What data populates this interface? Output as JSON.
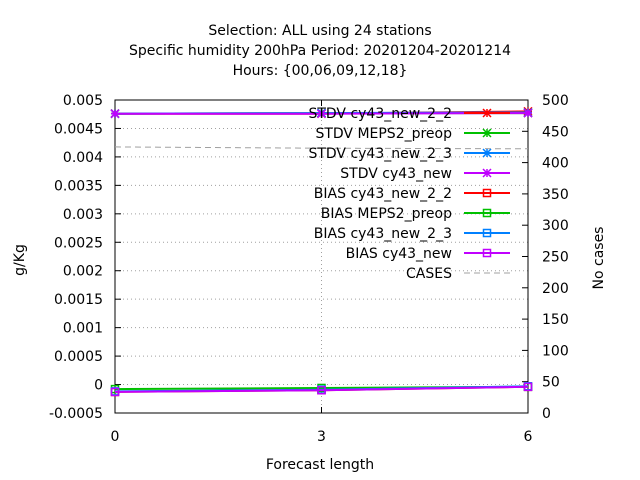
{
  "chart_data": {
    "type": "line",
    "title_lines": [
      "Selection: ALL using    24 stations",
      "Specific humidity 200hPa   Period: 20201204-20201214",
      "Hours: {00,06,09,12,18}"
    ],
    "xlabel": "Forecast length",
    "ylabel": "g/Kg",
    "y2label": "No cases",
    "xlim": [
      0,
      6
    ],
    "ylim": [
      -0.0005,
      0.005
    ],
    "y2lim": [
      0,
      500
    ],
    "x_ticks": [
      "0",
      "3",
      "6"
    ],
    "y_ticks": [
      "-0.0005",
      "0",
      "0.0005",
      "0.001",
      "0.0015",
      "0.002",
      "0.0025",
      "0.003",
      "0.0035",
      "0.004",
      "0.0045",
      "0.005"
    ],
    "y2_ticks": [
      "0",
      "50",
      "100",
      "150",
      "200",
      "250",
      "300",
      "350",
      "400",
      "450",
      "500"
    ],
    "grid": true,
    "legend_position": "top-right",
    "x": [
      0,
      3,
      6
    ],
    "series": [
      {
        "name": "STDV cy43_new_2_2",
        "axis": "y",
        "color": "#ff0000",
        "marker": "x",
        "values": [
          0.00476,
          0.00476,
          0.0048
        ]
      },
      {
        "name": "STDV MEPS2_preop",
        "axis": "y",
        "color": "#00c000",
        "marker": "x",
        "values": [
          0.00476,
          0.00477,
          0.00477
        ]
      },
      {
        "name": "STDV cy43_new_2_3",
        "axis": "y",
        "color": "#0080ff",
        "marker": "x",
        "values": [
          0.00476,
          0.00477,
          0.00478
        ]
      },
      {
        "name": "STDV cy43_new",
        "axis": "y",
        "color": "#c000ff",
        "marker": "x",
        "values": [
          0.00476,
          0.00476,
          0.00477
        ]
      },
      {
        "name": "BIAS cy43_new_2_2",
        "axis": "y",
        "color": "#ff0000",
        "marker": "square",
        "values": [
          -0.00013,
          -0.0001,
          -4e-05
        ]
      },
      {
        "name": "BIAS MEPS2_preop",
        "axis": "y",
        "color": "#00c000",
        "marker": "square",
        "values": [
          -8e-05,
          -6e-05,
          -4e-05
        ]
      },
      {
        "name": "BIAS cy43_new_2_3",
        "axis": "y",
        "color": "#0080ff",
        "marker": "square",
        "values": [
          -0.00012,
          -9e-05,
          -3e-05
        ]
      },
      {
        "name": "BIAS cy43_new",
        "axis": "y",
        "color": "#c000ff",
        "marker": "square",
        "values": [
          -0.00013,
          -0.0001,
          -4e-05
        ]
      },
      {
        "name": "CASES",
        "axis": "y2",
        "color": "#a0a0a0",
        "marker": "none",
        "dashed": true,
        "values": [
          425,
          423,
          422
        ]
      }
    ]
  }
}
